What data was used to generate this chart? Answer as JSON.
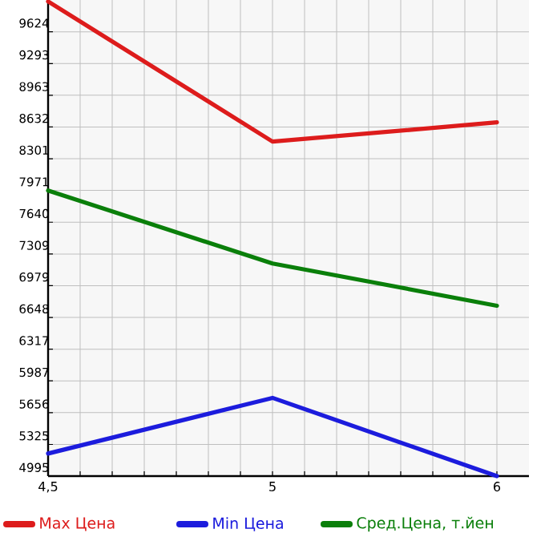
{
  "chart_data": {
    "type": "line",
    "categories": [
      "4,5",
      "5",
      "6"
    ],
    "series": [
      {
        "name": "Max Цена",
        "color": "#dd1c1c",
        "values": [
          9940,
          8480,
          8680
        ]
      },
      {
        "name": "Min Цена",
        "color": "#1c1cdd",
        "values": [
          5230,
          5810,
          4995
        ]
      },
      {
        "name": "Сред.Цена, т.йен",
        "color": "#0a7f0a",
        "values": [
          7970,
          7210,
          6770
        ]
      }
    ],
    "ylim": [
      4995,
      9955
    ],
    "yticks": [
      4995,
      5325,
      5656,
      5987,
      6317,
      6648,
      6979,
      7309,
      7640,
      7971,
      8301,
      8632,
      8963,
      9293,
      9624
    ],
    "grid": true,
    "legend": "bottom",
    "marker": "none",
    "line_style": "solid"
  }
}
